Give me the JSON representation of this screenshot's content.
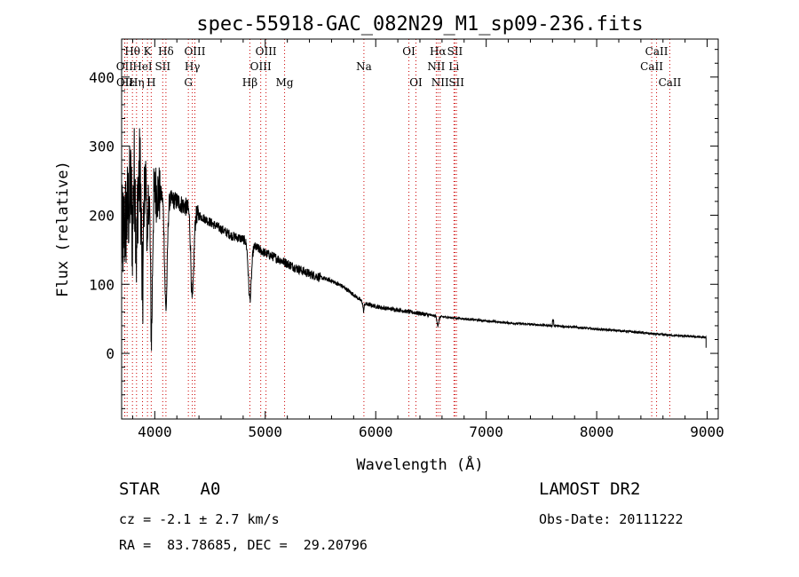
{
  "chart_data": {
    "type": "line",
    "title": "spec-55918-GAC_082N29_M1_sp09-236.fits",
    "xlabel": "Wavelength (Å)",
    "ylabel": "Flux (relative)",
    "xlim": [
      3700,
      9100
    ],
    "ylim": [
      -95,
      455
    ],
    "x_ticks": [
      4000,
      5000,
      6000,
      7000,
      8000,
      9000
    ],
    "y_ticks": [
      0,
      100,
      200,
      300,
      400
    ],
    "grid": false,
    "spectrum_color": "#000000",
    "line_marker_color": "#cc0000",
    "continuum": {
      "x": [
        3700,
        3760,
        3800,
        3900,
        4000,
        4100,
        4200,
        4300,
        4400,
        4500,
        4600,
        4700,
        4800,
        4900,
        5000,
        5100,
        5200,
        5300,
        5400,
        5500,
        5600,
        5700,
        5800,
        5900,
        6000,
        6100,
        6200,
        6300,
        6400,
        6500,
        6600,
        6800,
        7000,
        7200,
        7400,
        7600,
        7800,
        8000,
        8200,
        8400,
        8600,
        8800,
        8990
      ],
      "y": [
        160,
        210,
        260,
        250,
        235,
        225,
        220,
        210,
        200,
        190,
        180,
        170,
        165,
        155,
        145,
        138,
        130,
        122,
        115,
        110,
        105,
        97,
        85,
        72,
        68,
        65,
        63,
        60,
        58,
        55,
        53,
        50,
        47,
        44,
        42,
        40,
        38,
        35,
        33,
        30,
        27,
        25,
        23
      ]
    },
    "absorption_lines": [
      {
        "center": 3798,
        "depth": 80,
        "width": 6
      },
      {
        "center": 3835,
        "depth": 110,
        "width": 7
      },
      {
        "center": 3889,
        "depth": 170,
        "width": 8
      },
      {
        "center": 3934,
        "depth": 110,
        "width": 5
      },
      {
        "center": 3970,
        "depth": 210,
        "width": 9
      },
      {
        "center": 4101,
        "depth": 160,
        "width": 12
      },
      {
        "center": 4340,
        "depth": 130,
        "width": 13
      },
      {
        "center": 4861,
        "depth": 80,
        "width": 14
      },
      {
        "center": 5890,
        "depth": 12,
        "width": 5
      },
      {
        "center": 6563,
        "depth": 14,
        "width": 8
      }
    ],
    "line_markers": [
      {
        "label": "Hθ",
        "wavelength": 3798,
        "row": 0
      },
      {
        "label": "K",
        "wavelength": 3934,
        "row": 0
      },
      {
        "label": "Hδ",
        "wavelength": 4101,
        "row": 0
      },
      {
        "label": "OIII",
        "wavelength": 4363,
        "row": 0
      },
      {
        "label": "OIII",
        "wavelength": 5007,
        "row": 0
      },
      {
        "label": "OI",
        "wavelength": 6300,
        "row": 0
      },
      {
        "label": "Hα",
        "wavelength": 6563,
        "row": 0
      },
      {
        "label": "SII",
        "wavelength": 6717,
        "row": 0
      },
      {
        "label": "CaII",
        "wavelength": 8542,
        "row": 0
      },
      {
        "label": "OII",
        "wavelength": 3727,
        "row": 1
      },
      {
        "label": "HeI",
        "wavelength": 3889,
        "row": 1
      },
      {
        "label": "SII",
        "wavelength": 4072,
        "row": 1
      },
      {
        "label": "Hγ",
        "wavelength": 4340,
        "row": 1
      },
      {
        "label": "OIII",
        "wavelength": 4959,
        "row": 1
      },
      {
        "label": "Na",
        "wavelength": 5893,
        "row": 1
      },
      {
        "label": "NII",
        "wavelength": 6548,
        "row": 1
      },
      {
        "label": "Li",
        "wavelength": 6708,
        "row": 1
      },
      {
        "label": "CaII",
        "wavelength": 8498,
        "row": 1
      },
      {
        "label": "OII",
        "wavelength": 3729,
        "row": 2
      },
      {
        "label": "Hε",
        "wavelength": 3750,
        "row": 2
      },
      {
        "label": "Hη",
        "wavelength": 3835,
        "row": 2
      },
      {
        "label": "H",
        "wavelength": 3968,
        "row": 2
      },
      {
        "label": "G",
        "wavelength": 4304,
        "row": 2
      },
      {
        "label": "Hβ",
        "wavelength": 4861,
        "row": 2
      },
      {
        "label": "Mg",
        "wavelength": 5175,
        "row": 2
      },
      {
        "label": "OI",
        "wavelength": 6364,
        "row": 2
      },
      {
        "label": "NII",
        "wavelength": 6583,
        "row": 2
      },
      {
        "label": "SII",
        "wavelength": 6731,
        "row": 2
      },
      {
        "label": "CaII",
        "wavelength": 8662,
        "row": 2
      }
    ]
  },
  "footer": {
    "star_class": "STAR    A0",
    "survey": "LAMOST DR2",
    "redshift": "cz = -2.1 ± 2.7 km/s",
    "obs_date": "Obs-Date: 20111222",
    "coords": "RA =  83.78685, DEC =  29.20796"
  }
}
